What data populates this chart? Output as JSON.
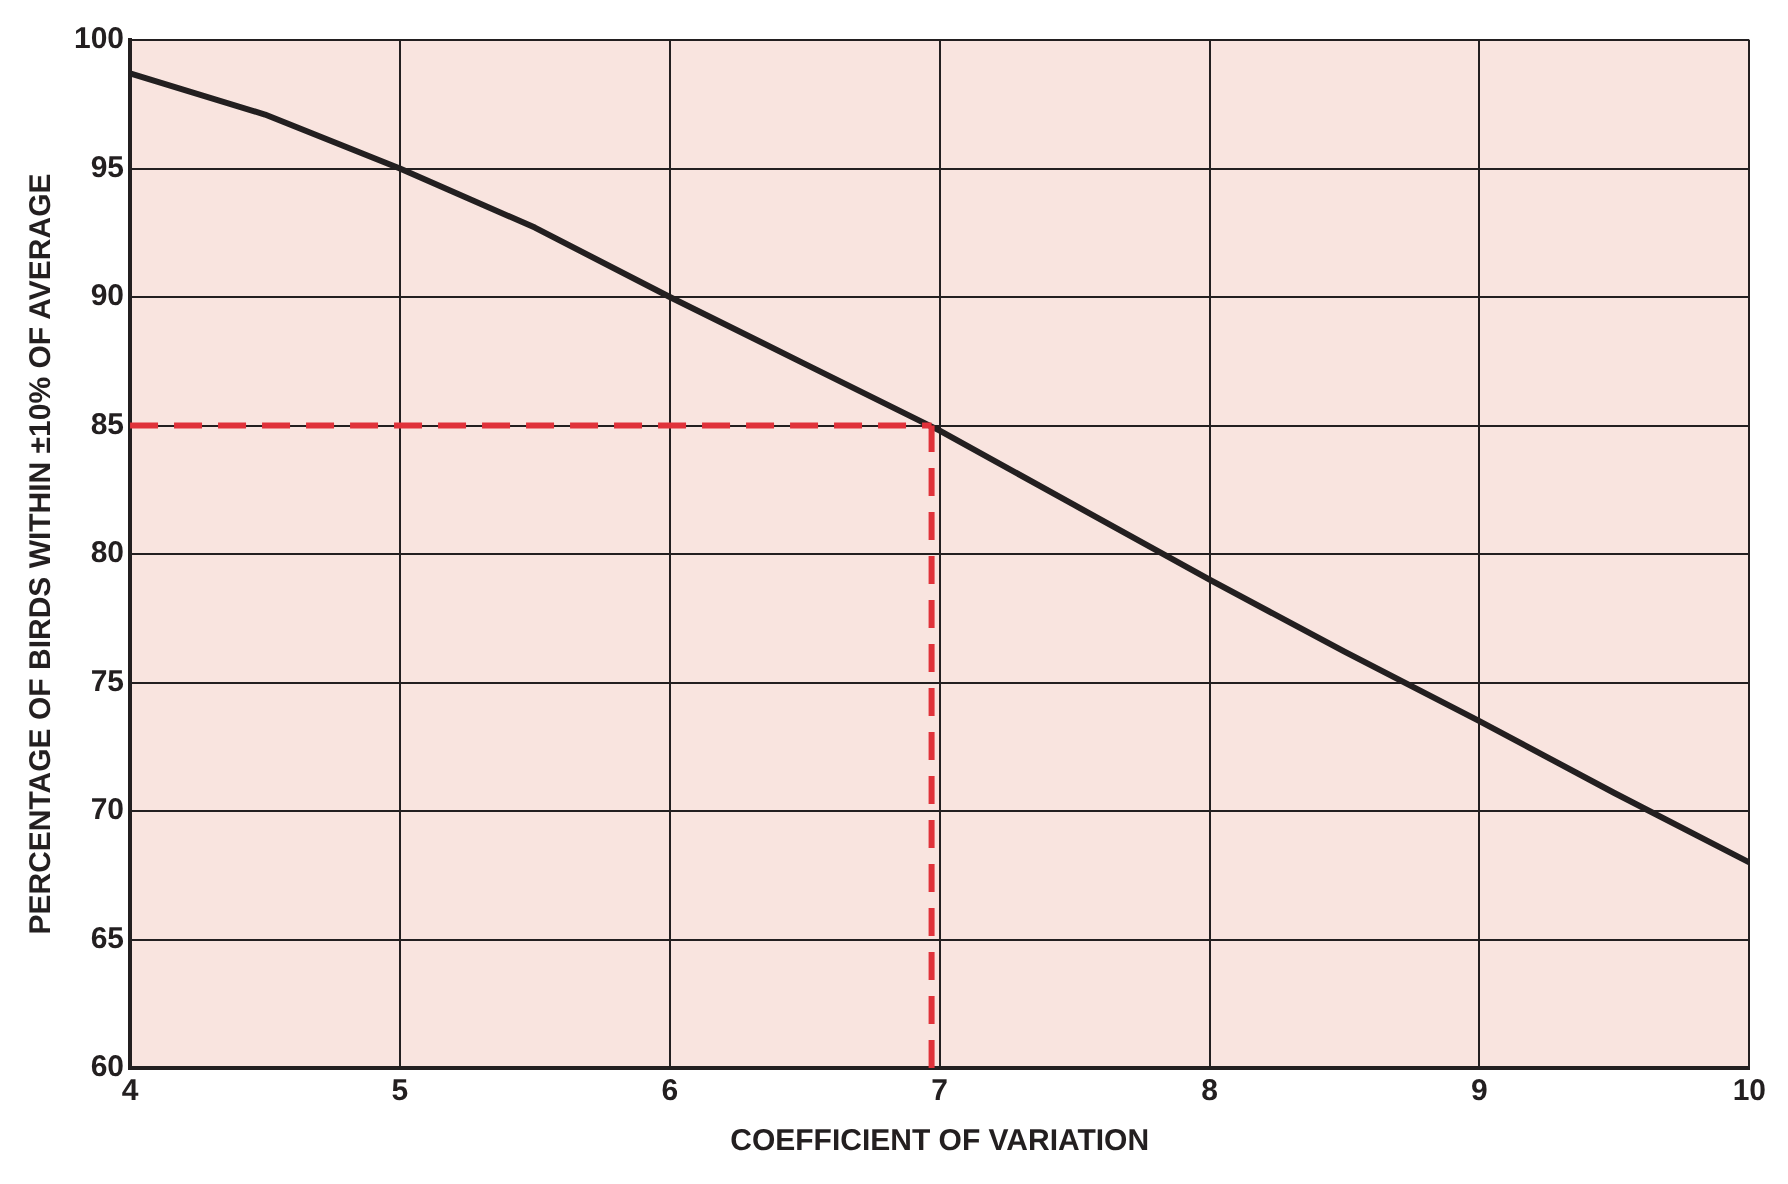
{
  "chart_data": {
    "type": "line",
    "xlabel": "COEFFICIENT OF VARIATION",
    "ylabel": "PERCENTAGE OF BIRDS WITHIN ±10% OF AVERAGE",
    "x": [
      4,
      4.5,
      5,
      5.5,
      6,
      6.5,
      7,
      7.5,
      8,
      8.5,
      9,
      9.5,
      10
    ],
    "series": [
      {
        "color": "#231f20",
        "values": [
          98.7,
          97.1,
          95,
          92.7,
          90,
          87.4,
          84.8,
          81.9,
          79,
          76.2,
          73.5,
          70.7,
          68
        ]
      }
    ],
    "xlim": [
      4,
      10
    ],
    "xticks": [
      4,
      5,
      6,
      7,
      8,
      9,
      10
    ],
    "ylim": [
      60,
      100
    ],
    "yticks": [
      60,
      65,
      70,
      75,
      80,
      85,
      90,
      95,
      100
    ],
    "grid": true,
    "marker": "none",
    "line_style": "solid",
    "ref_lines": [
      {
        "axis": "y",
        "value": 85,
        "color": "#e0323a",
        "line_style": "dashed"
      },
      {
        "axis": "x",
        "value": 6.97,
        "color": "#e0323a",
        "line_style": "dashed"
      }
    ]
  }
}
